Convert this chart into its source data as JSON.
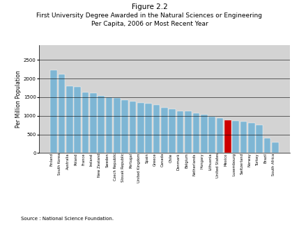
{
  "title_line1": "Figure 2.2",
  "title_line2": "First University Degree Awarded in the Natural Sciences or Engineering",
  "title_line3": "Per Capita, 2006 or Most Recent Year",
  "source": "Source : National Science Foundation.",
  "ylabel": "Per Million Population",
  "ylim": [
    0,
    2900
  ],
  "yticks": [
    0,
    500,
    1000,
    1500,
    2000,
    2500
  ],
  "plot_bg": "#d3d3d3",
  "bar_color": "#7eb6d4",
  "highlight_color": "#cc0000",
  "highlight_index": 22,
  "categories": [
    "Finland",
    "South Korea",
    "Australia",
    "Poland",
    "France",
    "Ireland",
    "New Zealand",
    "Sweden",
    "Czech Republic",
    "Slovak Republic",
    "Portugal",
    "United Kingdom",
    "Spain",
    "Greece",
    "Canada",
    "Chile",
    "Denmark",
    "Belgium",
    "Netherlands",
    "Hungary",
    "Lithuania",
    "United States",
    "Mexico",
    "Luxembourg",
    "Switzerland",
    "Norway",
    "Turkey",
    "Brazil",
    "South Africa"
  ],
  "values": [
    2230,
    2110,
    1790,
    1780,
    1620,
    1610,
    1540,
    1500,
    1480,
    1420,
    1380,
    1350,
    1330,
    1290,
    1210,
    1180,
    1130,
    1120,
    1060,
    1030,
    980,
    940,
    880,
    860,
    840,
    800,
    750,
    390,
    280
  ]
}
